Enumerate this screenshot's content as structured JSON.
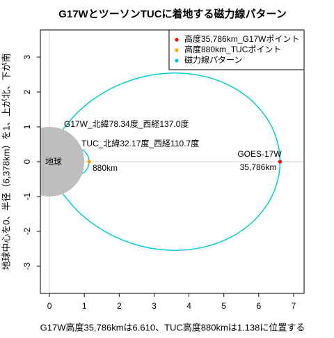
{
  "chart_data": {
    "type": "fieldlines",
    "title": "G17WとツーソンTUCに着地する磁力線パターン",
    "x_label": "G17W高度35,786kmは6.610、TUC高度880kmは1.138に位置する",
    "y_label": "地球中心を0、半径（6,378km）を1、上が北、下が南",
    "xlim": [
      -0.26,
      7.3
    ],
    "ylim": [
      -3.78,
      3.78
    ],
    "xticks": [
      0,
      1,
      2,
      3,
      4,
      5,
      6,
      7
    ],
    "yticks": [
      -3,
      -2,
      -1,
      0,
      1,
      2,
      3
    ],
    "legend": "topright",
    "earth": {
      "label": "地球",
      "radius": 1,
      "color": "#bebebe"
    },
    "points": [
      {
        "name": "高度35,786km_G17Wポイント",
        "color": "#ff0000",
        "x": [
          6.61
        ],
        "y": [
          0
        ]
      },
      {
        "name": "高度880km_TUCポイント",
        "color": "#ffa500",
        "x": [
          1.138
        ],
        "y": [
          0
        ]
      }
    ],
    "lines": {
      "name": "磁力線パターン",
      "color": "#00ced1",
      "pieces": [
        {
          "x": [
            0.389,
            0.445,
            0.826,
            1.342,
            1.98,
            2.713,
            3.5,
            4.293,
            5.04,
            5.686,
            6.186,
            6.502,
            6.61,
            6.502,
            6.186,
            5.686,
            5.04,
            4.293,
            3.5,
            2.713,
            1.98,
            1.342,
            0.826,
            0.445,
            0.389
          ],
          "y": [
            -0.921,
            -0.999,
            -1.431,
            -1.848,
            -2.199,
            -2.443,
            -2.543,
            -2.479,
            -2.244,
            -1.848,
            -1.315,
            -0.683,
            0,
            0.683,
            1.315,
            1.848,
            2.244,
            2.479,
            2.543,
            2.443,
            2.199,
            1.848,
            1.431,
            0.999,
            0.921
          ]
        },
        {
          "x": [
            0.939,
            1.026,
            1.087,
            1.125,
            1.138,
            1.125,
            1.087,
            1.026,
            0.939
          ],
          "y": [
            -0.347,
            -0.275,
            -0.192,
            -0.098,
            0,
            0.098,
            0.192,
            0.275,
            0.347
          ]
        }
      ]
    },
    "annotations": [
      "G17W_北緯78.34度_西経137.0度",
      "TUC_北緯32.17度_西経110.7度",
      "GOES-17W",
      "35,786km",
      "880km"
    ]
  }
}
